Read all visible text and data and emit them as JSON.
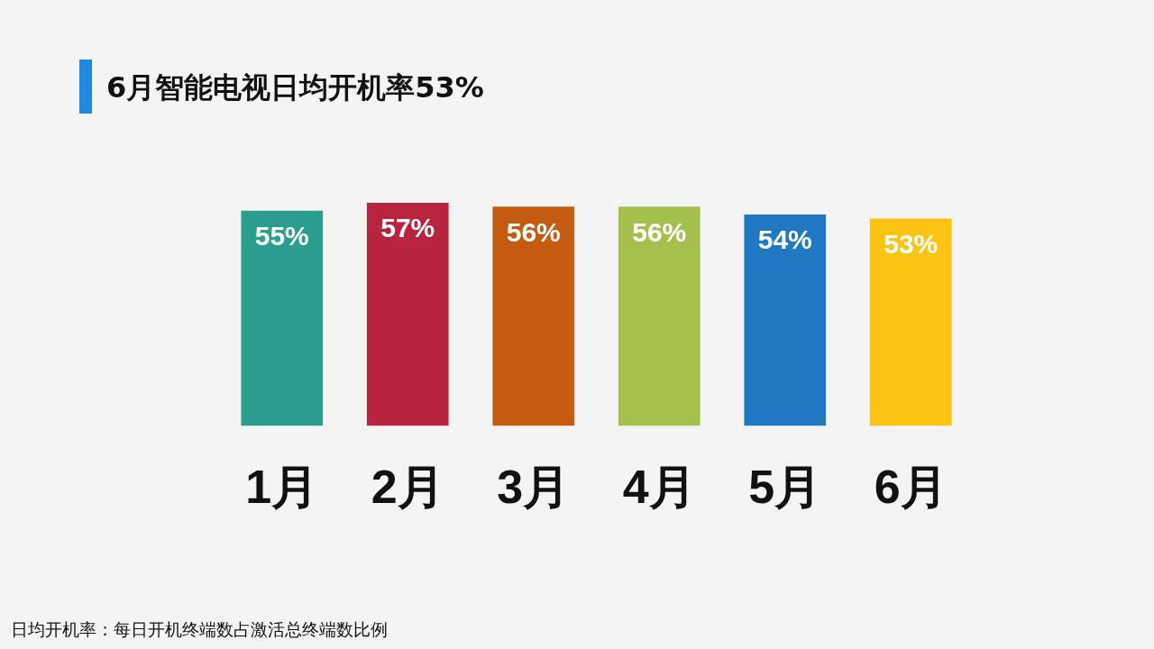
{
  "chart_data": {
    "type": "bar",
    "title": "6月智能电视日均开机率53%",
    "categories": [
      "1月",
      "2月",
      "3月",
      "4月",
      "5月",
      "6月"
    ],
    "values": [
      55,
      57,
      56,
      56,
      54,
      53
    ],
    "colors": [
      "#2a9d8f",
      "#b8233f",
      "#c55a11",
      "#a5bf4c",
      "#1f78c1",
      "#fbc312"
    ],
    "value_labels": [
      "55%",
      "57%",
      "56%",
      "56%",
      "54%",
      "53%"
    ],
    "legend": false,
    "grid": false,
    "annotations": [
      "日均开机率：每日开机终端数占激活总终端数比例"
    ]
  }
}
